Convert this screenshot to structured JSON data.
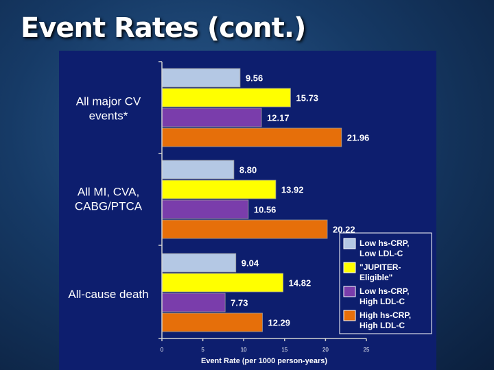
{
  "slide": {
    "title": "Event Rates (cont.)"
  },
  "chart_data": {
    "type": "bar",
    "orientation": "horizontal",
    "categories": [
      [
        "All major CV",
        "events*"
      ],
      [
        "All MI, CVA,",
        "CABG/PTCA"
      ],
      [
        "All-cause death"
      ]
    ],
    "series": [
      {
        "name": "Low hs-CRP, Low LDL-C",
        "legend_lines": [
          "Low hs-CRP,",
          "Low LDL-C"
        ],
        "color": "#b4c8e4",
        "values": [
          9.56,
          8.8,
          9.04
        ],
        "labels": [
          "9.56",
          "8.80",
          "9.04"
        ]
      },
      {
        "name": "\"JUPITER-Eligible\"",
        "legend_lines": [
          "\"JUPITER-",
          "Eligible\""
        ],
        "color": "#ffff00",
        "values": [
          15.73,
          13.92,
          14.82
        ],
        "labels": [
          "15.73",
          "13.92",
          "14.82"
        ]
      },
      {
        "name": "Low hs-CRP, High LDL-C",
        "legend_lines": [
          "Low hs-CRP,",
          "High LDL-C"
        ],
        "color": "#7a3dab",
        "values": [
          12.17,
          10.56,
          7.73
        ],
        "labels": [
          "12.17",
          "10.56",
          "7.73"
        ]
      },
      {
        "name": "High hs-CRP, High LDL-C",
        "legend_lines": [
          "High hs-CRP,",
          "High LDL-C"
        ],
        "color": "#e66f0a",
        "values": [
          21.96,
          20.22,
          12.29
        ],
        "labels": [
          "21.96",
          "20.22",
          "12.29"
        ]
      }
    ],
    "x_ticks": [
      0,
      5,
      10,
      15,
      20,
      25
    ],
    "xlim": [
      0,
      25
    ],
    "xlabel": "Event Rate (per 1000 person-years)",
    "ylabel": "",
    "grid": false,
    "legend_position": "bottom-right"
  }
}
